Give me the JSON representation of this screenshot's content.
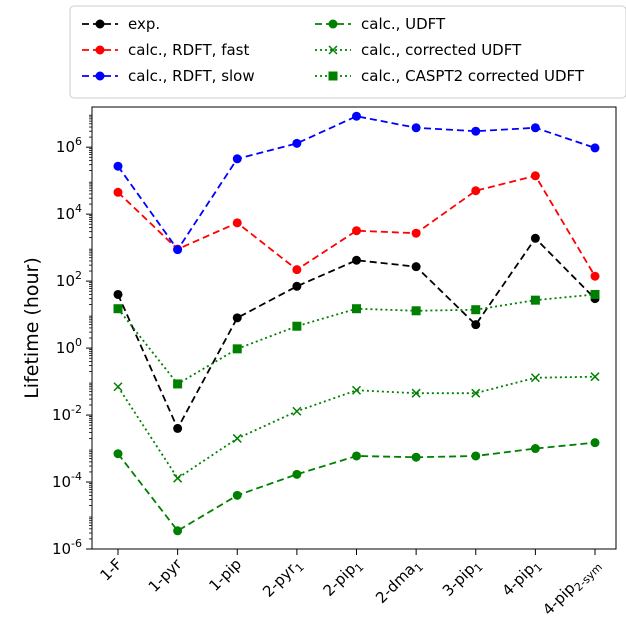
{
  "chart_data": {
    "type": "line",
    "title": "",
    "xlabel": "",
    "ylabel": "Lifetime (hour)",
    "yscale": "log",
    "ylim_exponents": [
      -6,
      7.2
    ],
    "y_tick_exponents": [
      -6,
      -4,
      -2,
      0,
      2,
      4,
      6
    ],
    "y_tick_labels": [
      "10^-6",
      "10^-4",
      "10^-2",
      "10^0",
      "10^2",
      "10^4",
      "10^6"
    ],
    "grid": false,
    "legend_position": "top (above plot)",
    "categories": [
      {
        "base": "1-F",
        "sub": ""
      },
      {
        "base": "1-pyr",
        "sub": ""
      },
      {
        "base": "1-pip",
        "sub": ""
      },
      {
        "base": "2-pyr",
        "sub": "1"
      },
      {
        "base": "2-pip",
        "sub": "1"
      },
      {
        "base": "2-dma",
        "sub": "1"
      },
      {
        "base": "3-pip",
        "sub": "1"
      },
      {
        "base": "4-pip",
        "sub": "1"
      },
      {
        "base": "4-pip",
        "sub": "2-sym"
      }
    ],
    "series": [
      {
        "name": "exp.",
        "color": "#000000",
        "line": "dashed",
        "marker": "circle",
        "values": [
          40,
          0.004,
          8,
          70,
          420,
          270,
          5,
          1900,
          30
        ]
      },
      {
        "name": "calc., RDFT, fast",
        "color": "#ff0000",
        "line": "dashed",
        "marker": "circle",
        "values": [
          45000,
          900,
          5500,
          220,
          3200,
          2700,
          50000,
          140000,
          140
        ]
      },
      {
        "name": "calc., RDFT, slow",
        "color": "#0000ff",
        "line": "dashed",
        "marker": "circle",
        "values": [
          270000,
          870,
          450000,
          1300000,
          8400000,
          3800000,
          3000000,
          3800000,
          950000
        ]
      },
      {
        "name": "calc., UDFT",
        "color": "#008000",
        "line": "dashed",
        "marker": "circle",
        "values": [
          0.0007,
          3.5e-06,
          4e-05,
          0.00017,
          0.0006,
          0.00055,
          0.0006,
          0.001,
          0.0015
        ]
      },
      {
        "name": "calc., corrected UDFT",
        "color": "#008000",
        "line": "dotted",
        "marker": "x",
        "values": [
          0.07,
          0.00013,
          0.002,
          0.013,
          0.055,
          0.045,
          0.045,
          0.13,
          0.14
        ]
      },
      {
        "name": "calc., CASPT2 corrected UDFT",
        "color": "#008000",
        "line": "dotted",
        "marker": "square",
        "values": [
          15,
          0.085,
          0.95,
          4.5,
          15,
          13,
          14,
          27,
          40
        ]
      }
    ]
  }
}
